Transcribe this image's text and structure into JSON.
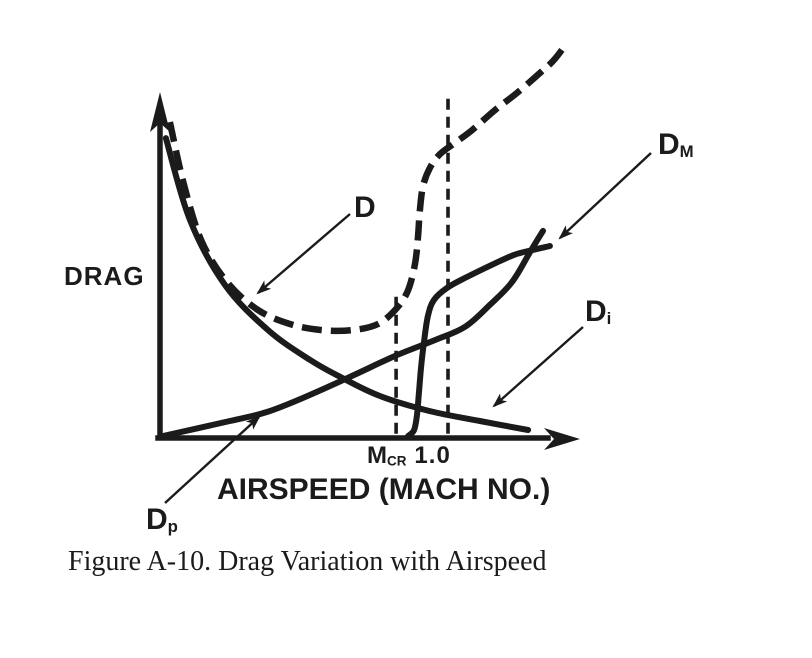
{
  "figure": {
    "caption": "Figure A-10. Drag Variation with Airspeed"
  },
  "colors": {
    "ink": "#1b1b1b",
    "background": "#ffffff"
  },
  "chart_data": {
    "type": "line",
    "title": "Drag Variation with Airspeed",
    "xlabel": "AIRSPEED (MACH NO.)",
    "ylabel": "DRAG",
    "x_units": "Mach number (approximate, axis unlabeled except MCR and 1.0)",
    "y_units": "relative drag (qualitative, axis unlabeled)",
    "xlim": [
      0,
      1.47
    ],
    "ylim": [
      0,
      1.25
    ],
    "grid": false,
    "legend": "none (curves labeled by pointer arrows)",
    "x_ticks": [
      {
        "main": "M",
        "sub": "CR",
        "x": 0.82
      },
      {
        "main": "1.0",
        "sub": "",
        "x": 1.0
      }
    ],
    "curve_labels": {
      "total": {
        "main": "D",
        "sub": ""
      },
      "mach": {
        "main": "D",
        "sub": "M"
      },
      "induced": {
        "main": "D",
        "sub": "i"
      },
      "parasite": {
        "main": "D",
        "sub": "p"
      }
    },
    "series": [
      {
        "id": "total",
        "name": "D (total drag)",
        "style": "dashed",
        "points": [
          [
            0.031,
            0.984
          ],
          [
            0.08,
            0.788
          ],
          [
            0.143,
            0.609
          ],
          [
            0.233,
            0.481
          ],
          [
            0.338,
            0.397
          ],
          [
            0.449,
            0.353
          ],
          [
            0.561,
            0.334
          ],
          [
            0.666,
            0.334
          ],
          [
            0.756,
            0.353
          ],
          [
            0.822,
            0.403
          ],
          [
            0.861,
            0.459
          ],
          [
            0.885,
            0.541
          ],
          [
            0.895,
            0.622
          ],
          [
            0.902,
            0.709
          ],
          [
            0.913,
            0.784
          ],
          [
            0.937,
            0.841
          ],
          [
            0.972,
            0.884
          ],
          [
            1.024,
            0.919
          ],
          [
            1.084,
            0.959
          ],
          [
            1.164,
            1.022
          ],
          [
            1.24,
            1.075
          ],
          [
            1.321,
            1.138
          ],
          [
            1.369,
            1.178
          ],
          [
            1.414,
            1.231
          ]
        ]
      },
      {
        "id": "induced",
        "name": "Di (induced drag)",
        "style": "solid",
        "points": [
          [
            0.017,
            0.934
          ],
          [
            0.101,
            0.678
          ],
          [
            0.223,
            0.475
          ],
          [
            0.373,
            0.334
          ],
          [
            0.519,
            0.241
          ],
          [
            0.624,
            0.188
          ],
          [
            0.763,
            0.128
          ],
          [
            0.937,
            0.081
          ],
          [
            1.111,
            0.05
          ],
          [
            1.279,
            0.022
          ]
        ]
      },
      {
        "id": "parasite",
        "name": "Dp (parasite drag)",
        "style": "solid",
        "points": [
          [
            0.007,
            0.003
          ],
          [
            0.24,
            0.05
          ],
          [
            0.369,
            0.078
          ],
          [
            0.502,
            0.125
          ],
          [
            0.659,
            0.188
          ],
          [
            0.815,
            0.253
          ],
          [
            0.955,
            0.303
          ],
          [
            1.059,
            0.344
          ],
          [
            1.146,
            0.413
          ],
          [
            1.223,
            0.484
          ],
          [
            1.286,
            0.578
          ],
          [
            1.331,
            0.644
          ]
        ]
      },
      {
        "id": "mach",
        "name": "DM (compressibility / Mach drag)",
        "style": "solid",
        "points": [
          [
            0.861,
            0.003
          ],
          [
            0.882,
            0.022
          ],
          [
            0.892,
            0.069
          ],
          [
            0.899,
            0.141
          ],
          [
            0.906,
            0.216
          ],
          [
            0.916,
            0.294
          ],
          [
            0.93,
            0.378
          ],
          [
            0.951,
            0.428
          ],
          [
            0.997,
            0.466
          ],
          [
            1.066,
            0.5
          ],
          [
            1.153,
            0.538
          ],
          [
            1.23,
            0.569
          ],
          [
            1.293,
            0.584
          ],
          [
            1.355,
            0.597
          ]
        ]
      }
    ],
    "reference_lines": [
      {
        "id": "mcr",
        "label": "MCR",
        "x": 0.819,
        "y_from": 0.01,
        "y_to": 0.441,
        "style": "dashed"
      },
      {
        "id": "mach1",
        "label": "Mach 1.0",
        "x": 1.0,
        "y_from": 0.01,
        "y_to": 1.063,
        "style": "dashed"
      }
    ]
  }
}
